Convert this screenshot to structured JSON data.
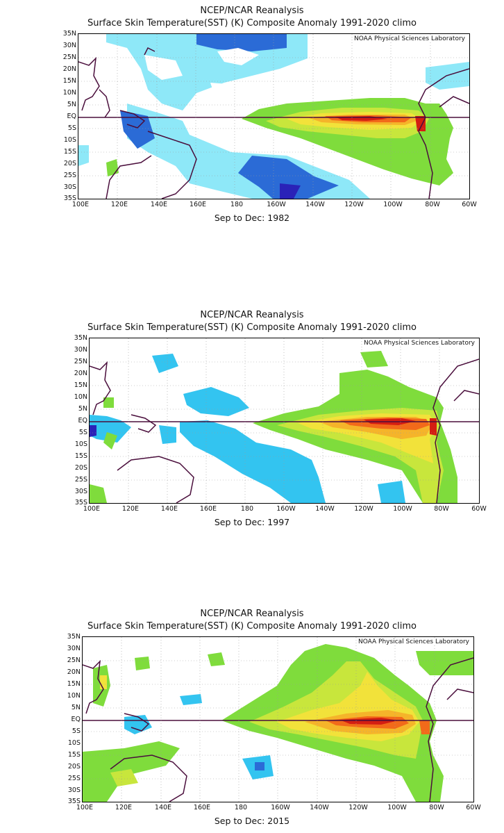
{
  "panels": [
    {
      "title": "NCEP/NCAR Reanalysis",
      "subtitle": "Surface Skin Temperature(SST) (K) Composite Anomaly 1991-2020 climo",
      "credit": "NOAA Physical Sciences Laboratory",
      "caption": "Sep to Dec: 1982"
    },
    {
      "title": "NCEP/NCAR Reanalysis",
      "subtitle": "Surface Skin Temperature(SST) (K) Composite Anomaly 1991-2020 climo",
      "credit": "NOAA Physical Sciences Laboratory",
      "caption": "Sep to Dec: 1997"
    },
    {
      "title": "NCEP/NCAR Reanalysis",
      "subtitle": "Surface Skin Temperature(SST) (K) Composite Anomaly 1991-2020 climo",
      "credit": "NOAA Physical Sciences Laboratory",
      "caption": "Sep to Dec: 2015"
    }
  ],
  "lat_labels": [
    "35N",
    "30N",
    "25N",
    "20N",
    "15N",
    "10N",
    "5N",
    "EQ",
    "5S",
    "10S",
    "15S",
    "20S",
    "25S",
    "30S",
    "35S"
  ],
  "lon_labels": [
    "100E",
    "120E",
    "140E",
    "160E",
    "180",
    "160W",
    "140W",
    "120W",
    "100W",
    "80W",
    "60W"
  ],
  "colors": {
    "warm_1": "#7fdc3c",
    "warm_2": "#c8e63c",
    "warm_3": "#f2e23a",
    "warm_4": "#f5b42a",
    "warm_5": "#f26a1a",
    "warm_6": "#d41e12",
    "cool_1": "#8ee8f8",
    "cool_2": "#33c4f0",
    "cool_3": "#2b6bd6",
    "cool_4": "#2a22b8",
    "coast": "#4a0e3c"
  }
}
